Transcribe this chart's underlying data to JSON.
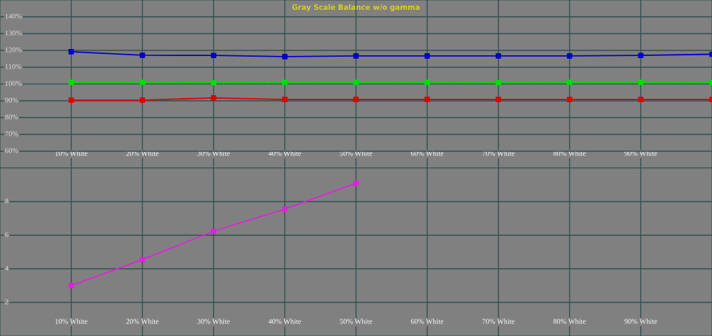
{
  "chart_data": [
    {
      "type": "line",
      "title": "Gray Scale Balance w/o gamma",
      "x": [
        10,
        20,
        30,
        40,
        50,
        60,
        70,
        80,
        90,
        100
      ],
      "series": [
        {
          "color": "#0000cc",
          "values": [
            119.2,
            117.1,
            117,
            116.3,
            116.7,
            116.7,
            116.7,
            116.7,
            117,
            117.7
          ]
        },
        {
          "color": "#00dd00",
          "values": [
            101,
            101,
            100.8,
            101,
            101,
            101,
            100.9,
            101,
            101,
            100.9
          ]
        },
        {
          "color": "#dd0000",
          "values": [
            90.4,
            90.4,
            91.7,
            90.8,
            90.8,
            90.8,
            90.8,
            90.8,
            90.8,
            90.8
          ]
        }
      ],
      "xlim": [
        0,
        100
      ],
      "xticks": [
        {
          "value": 10,
          "label": "10% White"
        },
        {
          "value": 20,
          "label": "20% White"
        },
        {
          "value": 30,
          "label": "30% White"
        },
        {
          "value": 40,
          "label": "40% White"
        },
        {
          "value": 50,
          "label": "50% White"
        },
        {
          "value": 60,
          "label": "60% White"
        },
        {
          "value": 70,
          "label": "70% White"
        },
        {
          "value": 80,
          "label": "80% White"
        },
        {
          "value": 90,
          "label": "90% White"
        }
      ],
      "ylim": [
        50,
        150
      ],
      "yticks": [
        {
          "value": 60,
          "label": "60%"
        },
        {
          "value": 70,
          "label": "70%"
        },
        {
          "value": 80,
          "label": "80%"
        },
        {
          "value": 90,
          "label": "90%"
        },
        {
          "value": 100,
          "label": "100%"
        },
        {
          "value": 110,
          "label": "110%"
        },
        {
          "value": 120,
          "label": "120%"
        },
        {
          "value": 130,
          "label": "130%"
        },
        {
          "value": 140,
          "label": "140%"
        }
      ],
      "ref_lines": [
        {
          "axis": "y",
          "value": 100,
          "color": "#dddddd",
          "line_style": "dotted"
        }
      ],
      "grid": true,
      "marker": "square",
      "line_style": "solid",
      "legend": false
    },
    {
      "type": "line",
      "x": [
        10,
        20,
        30,
        40,
        50
      ],
      "series": [
        {
          "color": "#dd22dd",
          "values": [
            3.0,
            4.55,
            6.24,
            7.56,
            9.1
          ]
        }
      ],
      "xlim": [
        0,
        100
      ],
      "xticks": [
        {
          "value": 10,
          "label": "10% White"
        },
        {
          "value": 20,
          "label": "20% White"
        },
        {
          "value": 30,
          "label": "30% White"
        },
        {
          "value": 40,
          "label": "40% White"
        },
        {
          "value": 50,
          "label": "50% White"
        },
        {
          "value": 60,
          "label": "60% White"
        },
        {
          "value": 70,
          "label": "70% White"
        },
        {
          "value": 80,
          "label": "80% White"
        },
        {
          "value": 90,
          "label": "90% White"
        }
      ],
      "ylim": [
        0,
        10
      ],
      "yticks": [
        2,
        4,
        6,
        8
      ],
      "grid": true,
      "marker": "square",
      "line_style": "solid",
      "legend": false
    }
  ]
}
